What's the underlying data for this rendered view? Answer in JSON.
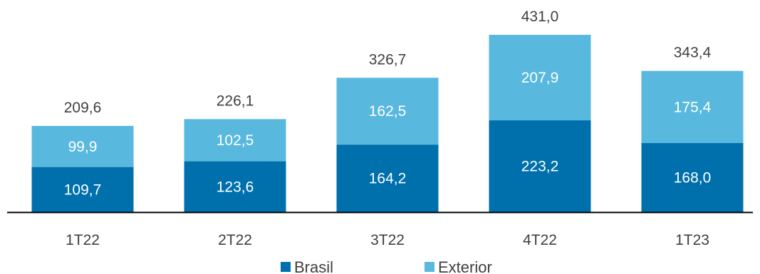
{
  "chart_data": {
    "type": "bar",
    "stacked": true,
    "categories": [
      "1T22",
      "2T22",
      "3T22",
      "4T22",
      "1T23"
    ],
    "series": [
      {
        "name": "Brasil",
        "values": [
          109.7,
          123.6,
          164.2,
          223.2,
          168.0
        ],
        "color": "#0070AD",
        "labels": [
          "109,7",
          "123,6",
          "164,2",
          "223,2",
          "168,0"
        ]
      },
      {
        "name": "Exterior",
        "values": [
          99.9,
          102.5,
          162.5,
          207.9,
          175.4
        ],
        "color": "#59B8DE",
        "labels": [
          "99,9",
          "102,5",
          "162,5",
          "207,9",
          "175,4"
        ]
      }
    ],
    "totals": [
      209.6,
      226.1,
      326.7,
      431.0,
      343.4
    ],
    "total_labels": [
      "209,6",
      "226,1",
      "326,7",
      "431,0",
      "343,4"
    ],
    "title": "",
    "xlabel": "",
    "ylabel": "",
    "ylim": [
      0,
      431
    ],
    "grid": false,
    "legend_position": "bottom-center"
  },
  "colors": {
    "segment_label": "#ffffff",
    "total_label": "#404040",
    "category_label": "#404040",
    "axis": "#000000"
  }
}
